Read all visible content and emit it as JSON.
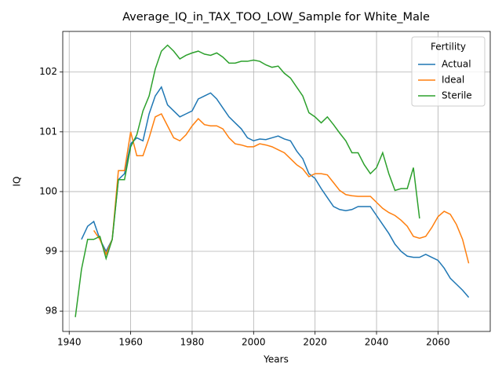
{
  "chart_data": {
    "type": "line",
    "title": "Average_IQ_in_TAX_TOO_LOW_Sample for White_Male",
    "x_label": "Years",
    "y_label": "IQ",
    "legend_title": "Fertility",
    "legend_position": "upper right",
    "grid": true,
    "xlim": [
      1937.9,
      2077
    ],
    "ylim": [
      97.66,
      102.68
    ],
    "xticks": [
      1940,
      1960,
      1980,
      2000,
      2020,
      2040,
      2060
    ],
    "yticks": [
      98,
      99,
      100,
      101,
      102
    ],
    "x": [
      1942,
      1944,
      1946,
      1948,
      1950,
      1952,
      1954,
      1956,
      1958,
      1960,
      1962,
      1964,
      1966,
      1968,
      1970,
      1972,
      1974,
      1976,
      1978,
      1980,
      1982,
      1984,
      1986,
      1988,
      1990,
      1992,
      1994,
      1996,
      1998,
      2000,
      2002,
      2004,
      2006,
      2008,
      2010,
      2012,
      2014,
      2016,
      2018,
      2020,
      2022,
      2024,
      2026,
      2028,
      2030,
      2032,
      2034,
      2036,
      2038,
      2040,
      2042,
      2044,
      2046,
      2048,
      2050,
      2052,
      2054,
      2056,
      2058,
      2060,
      2062,
      2064,
      2066,
      2068,
      2070
    ],
    "series": [
      {
        "name": "Actual",
        "color": "#1f77b4",
        "values": [
          null,
          99.2,
          99.42,
          99.5,
          99.2,
          99.0,
          99.2,
          100.2,
          100.3,
          100.8,
          100.9,
          100.85,
          101.3,
          101.6,
          101.75,
          101.45,
          101.35,
          101.25,
          101.3,
          101.35,
          101.55,
          101.6,
          101.65,
          101.55,
          101.4,
          101.25,
          101.15,
          101.05,
          100.9,
          100.85,
          100.88,
          100.87,
          100.9,
          100.93,
          100.88,
          100.85,
          100.68,
          100.55,
          100.3,
          100.22,
          100.05,
          99.9,
          99.75,
          99.7,
          99.68,
          99.7,
          99.75,
          99.75,
          99.75,
          99.6,
          99.45,
          99.3,
          99.12,
          99.0,
          98.92,
          98.9,
          98.9,
          98.95,
          98.9,
          98.85,
          98.72,
          98.55,
          98.45,
          98.35,
          98.23
        ]
      },
      {
        "name": "Ideal",
        "color": "#ff7f0e",
        "values": [
          null,
          null,
          null,
          99.35,
          99.2,
          98.95,
          99.2,
          100.35,
          100.35,
          101.0,
          100.6,
          100.6,
          100.9,
          101.25,
          101.3,
          101.1,
          100.9,
          100.85,
          100.95,
          101.1,
          101.22,
          101.12,
          101.1,
          101.1,
          101.05,
          100.9,
          100.8,
          100.78,
          100.75,
          100.75,
          100.8,
          100.78,
          100.75,
          100.7,
          100.65,
          100.55,
          100.45,
          100.38,
          100.25,
          100.3,
          100.3,
          100.28,
          100.15,
          100.02,
          99.95,
          99.93,
          99.92,
          99.92,
          99.92,
          99.82,
          99.72,
          99.65,
          99.6,
          99.52,
          99.42,
          99.25,
          99.22,
          99.25,
          99.4,
          99.58,
          99.67,
          99.62,
          99.45,
          99.2,
          98.8
        ]
      },
      {
        "name": "Sterile",
        "color": "#2ca02c",
        "values": [
          97.9,
          98.7,
          99.2,
          99.2,
          99.25,
          98.88,
          99.2,
          100.2,
          100.2,
          100.75,
          100.95,
          101.35,
          101.6,
          102.05,
          102.35,
          102.45,
          102.35,
          102.22,
          102.28,
          102.32,
          102.35,
          102.3,
          102.28,
          102.32,
          102.25,
          102.15,
          102.15,
          102.18,
          102.18,
          102.2,
          102.18,
          102.12,
          102.08,
          102.1,
          101.98,
          101.9,
          101.75,
          101.6,
          101.32,
          101.25,
          101.15,
          101.25,
          101.12,
          100.98,
          100.85,
          100.65,
          100.65,
          100.45,
          100.3,
          100.4,
          100.65,
          100.3,
          100.02,
          100.05,
          100.05,
          100.4,
          99.55,
          null,
          null,
          null,
          null,
          null,
          null,
          null,
          null
        ]
      }
    ]
  }
}
